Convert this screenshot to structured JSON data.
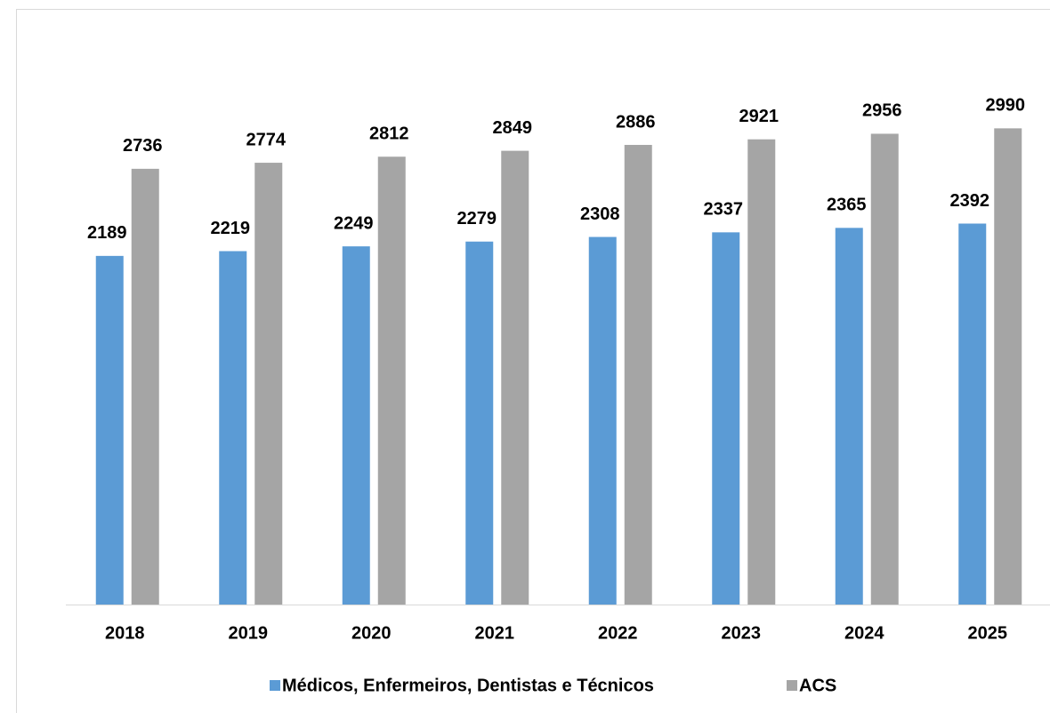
{
  "chart_data": {
    "type": "bar",
    "categories": [
      "2018",
      "2019",
      "2020",
      "2021",
      "2022",
      "2023",
      "2024",
      "2025"
    ],
    "series": [
      {
        "name": "Médicos, Enfermeiros, Dentistas e Técnicos",
        "color": "#5b9bd5",
        "values": [
          2189,
          2219,
          2249,
          2279,
          2308,
          2337,
          2365,
          2392
        ]
      },
      {
        "name": "ACS",
        "color": "#a5a5a5",
        "values": [
          2736,
          2774,
          2812,
          2849,
          2886,
          2921,
          2956,
          2990
        ]
      }
    ],
    "ylim": [
      0,
      3500
    ],
    "grid": false,
    "legend": "bottom"
  }
}
